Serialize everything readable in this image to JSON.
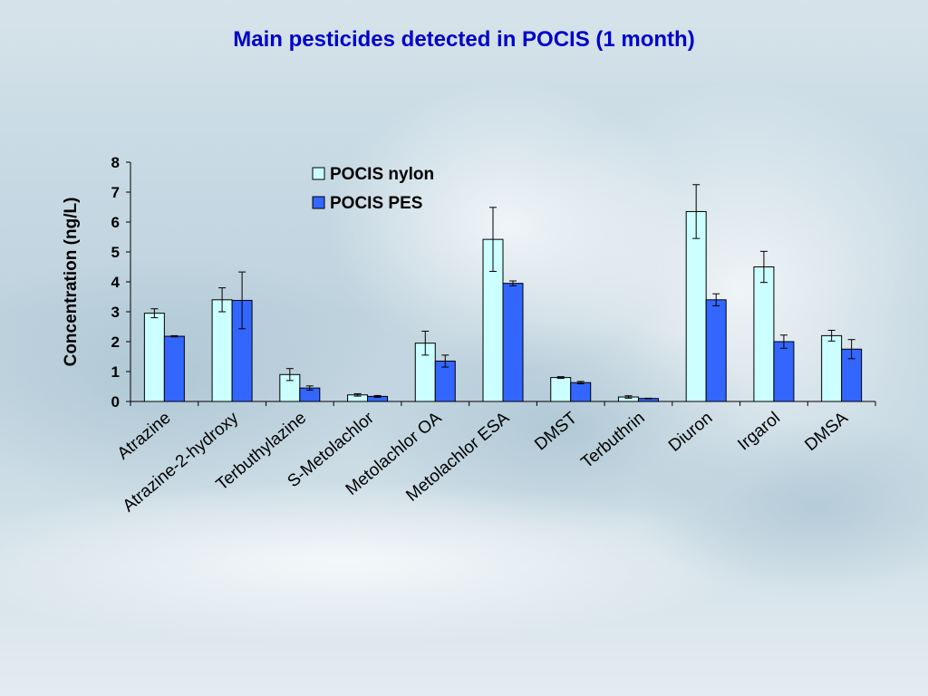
{
  "chart_data": {
    "type": "bar",
    "title": "Main pesticides detected in POCIS (1 month)",
    "ylabel": "Concentration (ng/L)",
    "xlabel": "",
    "ylim": [
      0,
      8
    ],
    "yticks": [
      "0",
      "1",
      "2",
      "3",
      "4",
      "5",
      "6",
      "7",
      "8"
    ],
    "categories": [
      "Atrazine",
      "Atrazine-2-hydroxy",
      "Terbuthylazine",
      "S-Metolachlor",
      "Metolachlor OA",
      "Metolachlor ESA",
      "DMST",
      "Terbuthrin",
      "Diuron",
      "Irgarol",
      "DMSA"
    ],
    "series": [
      {
        "name": "POCIS nylon",
        "color": "#ccffff",
        "values": [
          2.95,
          3.4,
          0.9,
          0.22,
          1.95,
          5.42,
          0.8,
          0.15,
          6.35,
          4.5,
          2.2
        ],
        "errors": [
          0.15,
          0.4,
          0.2,
          0.04,
          0.4,
          1.07,
          0.03,
          0.04,
          0.9,
          0.52,
          0.18
        ]
      },
      {
        "name": "POCIS PES",
        "color": "#3366ff",
        "values": [
          2.18,
          3.38,
          0.45,
          0.17,
          1.35,
          3.95,
          0.63,
          0.1,
          3.4,
          2.0,
          1.75
        ],
        "errors": [
          0.02,
          0.95,
          0.07,
          0.03,
          0.2,
          0.08,
          0.04,
          0.01,
          0.2,
          0.22,
          0.32
        ]
      }
    ],
    "legend": "top-center",
    "grid": false,
    "colors": {
      "title": "#0000cc",
      "axis": "#000000"
    }
  }
}
